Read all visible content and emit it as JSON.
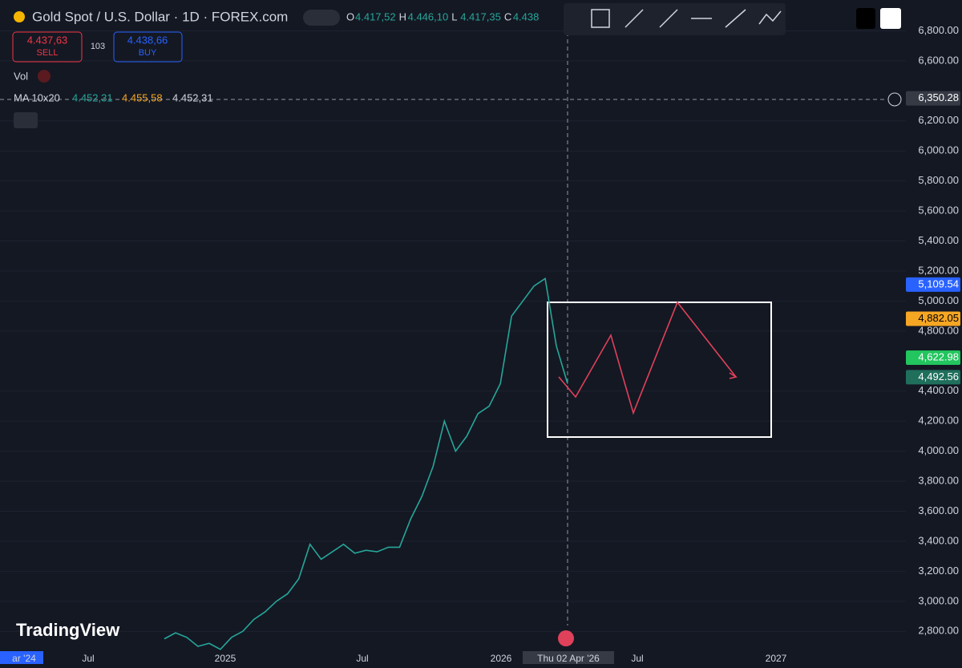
{
  "header": {
    "symbol": "Gold Spot / U.S. Dollar · 1D · FOREX.com",
    "ohlc": [
      {
        "key": "O",
        "value": "4.417,52"
      },
      {
        "key": "H",
        "value": "4.446,10"
      },
      {
        "key": "L",
        "value": "4.417,35"
      },
      {
        "key": "C",
        "value": "4.438"
      }
    ]
  },
  "trade": {
    "sell_price": "4.437,63",
    "sell": "SELL",
    "spread": "103",
    "buy_price": "4.438,66",
    "buy": "BUY"
  },
  "indicators": {
    "vol": "Vol",
    "ma": {
      "name": "MA 10x20",
      "values": [
        "4.452,31",
        "4.455,58",
        "4.452,31"
      ]
    }
  },
  "watermark": "TradingView",
  "chart_data": {
    "type": "line",
    "ylim": [
      2700,
      7000
    ],
    "yticks": [
      {
        "value": 6800,
        "label": "6,800.00"
      },
      {
        "value": 6600,
        "label": "6,600.00"
      },
      {
        "value": 6200,
        "label": "6,200.00"
      },
      {
        "value": 6000,
        "label": "6,000.00"
      },
      {
        "value": 5800,
        "label": "5,800.00"
      },
      {
        "value": 5600,
        "label": "5,600.00"
      },
      {
        "value": 5400,
        "label": "5,400.00"
      },
      {
        "value": 5200,
        "label": "5,200.00"
      },
      {
        "value": 5000,
        "label": "5,000.00"
      },
      {
        "value": 4800,
        "label": "4,800.00"
      },
      {
        "value": 4400,
        "label": "4,400.00"
      },
      {
        "value": 4200,
        "label": "4,200.00"
      },
      {
        "value": 4000,
        "label": "4,000.00"
      },
      {
        "value": 3800,
        "label": "3,800.00"
      },
      {
        "value": 3600,
        "label": "3,600.00"
      },
      {
        "value": 3400,
        "label": "3,400.00"
      },
      {
        "value": 3200,
        "label": "3,200.00"
      },
      {
        "value": 3000,
        "label": "3,000.00"
      },
      {
        "value": 2800,
        "label": "2,800.00"
      }
    ],
    "price_markers": [
      {
        "value": 6350.28,
        "label": "6,350.28",
        "color": "#363a45"
      },
      {
        "value": 5109.54,
        "label": "5,109.54",
        "color": "#2962ff"
      },
      {
        "value": 4882.05,
        "label": "4,882.05",
        "color": "#f5a623"
      },
      {
        "value": 4622.98,
        "label": "4,622.98",
        "color": "#22c55e"
      },
      {
        "value": 4492.56,
        "label": "4,492.56",
        "color": "#1f6f5c"
      }
    ],
    "x_labels": [
      "ar '24",
      "Jul",
      "2025",
      "Jul",
      "2026",
      "Jul",
      "2027"
    ],
    "crosshair_x_label": "Thu 02 Apr '26",
    "series": [
      {
        "color": "#26a69a",
        "values": [
          2750,
          2790,
          2760,
          2700,
          2720,
          2680,
          2760,
          2800,
          2880,
          2930,
          3000,
          3050,
          3150,
          3380,
          3280,
          3330,
          3380,
          3320,
          3340,
          3330,
          3360,
          3360,
          3550,
          3700,
          3900,
          4200,
          4000,
          4100,
          4250,
          4300,
          4450,
          4900,
          5000,
          5100,
          5150,
          4700,
          4450
        ]
      }
    ]
  }
}
